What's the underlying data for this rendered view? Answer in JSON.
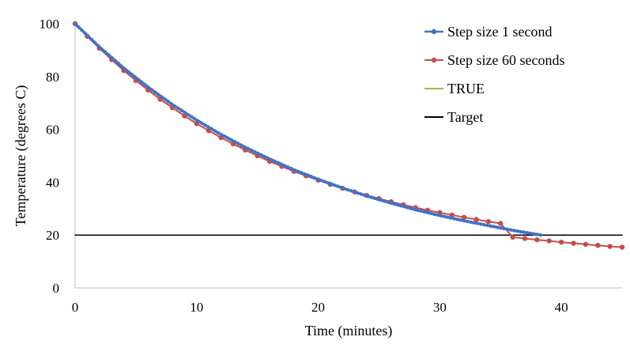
{
  "chart_data": {
    "type": "line",
    "title": "",
    "xlabel": "Time (minutes)",
    "ylabel": "Temperature (degrees C)",
    "xlim": [
      0,
      45
    ],
    "ylim": [
      0,
      100
    ],
    "x_ticks": [
      0,
      10,
      20,
      30,
      40
    ],
    "y_ticks": [
      0,
      20,
      40,
      60,
      80,
      100
    ],
    "grid": false,
    "legend_position": "top-right",
    "series": [
      {
        "name": "Step size 1 second",
        "color": "#4472C4",
        "marker": "small-circle-dense",
        "x": [
          0,
          2,
          4,
          6,
          8,
          10,
          12,
          14,
          16,
          18,
          20,
          22,
          24,
          26,
          28,
          30,
          32,
          34,
          36,
          38.3
        ],
        "y": [
          100,
          91.2,
          83.2,
          76.0,
          69.4,
          63.5,
          58.1,
          53.2,
          48.8,
          44.7,
          41.1,
          37.8,
          34.8,
          32.1,
          29.6,
          27.4,
          25.4,
          23.6,
          21.8,
          20.0
        ]
      },
      {
        "name": "Step size 60 seconds",
        "color": "#C0504D",
        "marker": "circle",
        "x": [
          0,
          1,
          2,
          3,
          4,
          5,
          6,
          7,
          8,
          9,
          10,
          11,
          12,
          13,
          14,
          15,
          16,
          17,
          18,
          19,
          20,
          21,
          22,
          23,
          24,
          25,
          26,
          27,
          28,
          29,
          30,
          31,
          32,
          33,
          34,
          35,
          36,
          37,
          38,
          39,
          40,
          41,
          42,
          43,
          44,
          45
        ],
        "y": [
          100,
          95.2,
          90.7,
          86.4,
          82.3,
          78.5,
          74.9,
          71.4,
          68.2,
          65.1,
          62.2,
          59.5,
          56.9,
          54.5,
          52.2,
          50.0,
          47.9,
          46.0,
          44.1,
          42.4,
          40.8,
          39.2,
          37.7,
          36.3,
          35.0,
          33.8,
          32.6,
          31.5,
          30.4,
          29.4,
          28.5,
          27.6,
          26.7,
          25.9,
          25.1,
          24.4,
          19.2,
          18.7,
          18.2,
          17.8,
          17.3,
          16.9,
          16.5,
          16.1,
          15.7,
          15.4
        ]
      },
      {
        "name": "TRUE",
        "color": "#9BBB59",
        "marker": "none",
        "x": [
          0,
          2,
          4,
          6,
          8,
          10,
          12,
          14,
          16,
          18,
          20,
          22,
          24,
          26,
          28,
          30,
          32,
          34,
          36,
          38.3
        ],
        "y": [
          100,
          91.2,
          83.2,
          76.0,
          69.4,
          63.5,
          58.1,
          53.2,
          48.8,
          44.7,
          41.1,
          37.8,
          34.8,
          32.1,
          29.6,
          27.4,
          25.4,
          23.6,
          21.8,
          20.0
        ]
      },
      {
        "name": "Target",
        "color": "#000000",
        "marker": "none",
        "x": [
          0,
          45
        ],
        "y": [
          20,
          20
        ]
      }
    ]
  }
}
